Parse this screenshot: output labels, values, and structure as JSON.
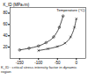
{
  "chart_data": {
    "type": "line",
    "x_label": "Temperature (°C)",
    "y_label": "K_ID (MPa√m)",
    "caption": "K_ID : critical stress intensity factor in dynamic region",
    "xlim": [
      -175,
      25
    ],
    "xticks": [
      -150,
      -100,
      -50,
      0
    ],
    "ylim": [
      0,
      90
    ],
    "yticks": [
      20,
      40,
      60,
      80
    ],
    "series": [
      {
        "color": "#222222",
        "marker": "circle",
        "x": [
          -150,
          -125,
          -100,
          -80,
          -60,
          -45,
          -35
        ],
        "values": [
          15,
          18,
          22,
          28,
          38,
          55,
          75
        ]
      },
      {
        "color": "#222222",
        "marker": "times",
        "x": [
          -100,
          -75,
          -50,
          -30,
          -15,
          -5,
          0
        ],
        "values": [
          14,
          17,
          21,
          27,
          38,
          55,
          70
        ]
      }
    ]
  }
}
